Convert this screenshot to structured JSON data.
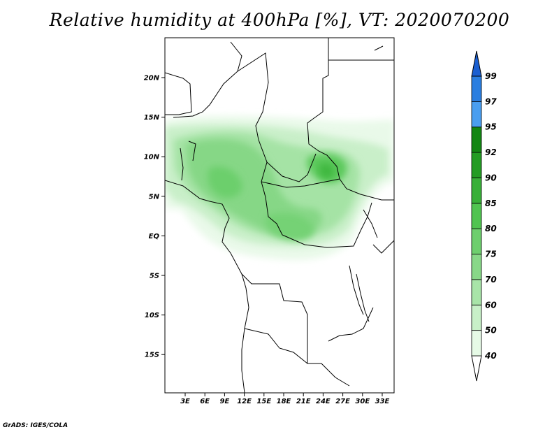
{
  "title": "Relative humidity at 400hPa [%], VT: 2020070200",
  "credit": "GrADS: IGES/COLA",
  "map": {
    "lat_labels": [
      "20N",
      "15N",
      "10N",
      "5N",
      "EQ",
      "5S",
      "10S",
      "15S"
    ],
    "lon_labels": [
      "3E",
      "6E",
      "9E",
      "12E",
      "15E",
      "18E",
      "21E",
      "24E",
      "27E",
      "30E",
      "33E"
    ]
  },
  "colorbar": {
    "levels": [
      "40",
      "50",
      "60",
      "70",
      "75",
      "80",
      "85",
      "90",
      "92",
      "95",
      "97",
      "99"
    ],
    "colors": [
      "#ffffff",
      "#e6fae6",
      "#c8f0c8",
      "#a8e4a8",
      "#88d888",
      "#6ecf6e",
      "#50c450",
      "#38b038",
      "#239c23",
      "#128612",
      "#4a9ef0",
      "#2a7ee0",
      "#1a5ed0"
    ]
  }
}
